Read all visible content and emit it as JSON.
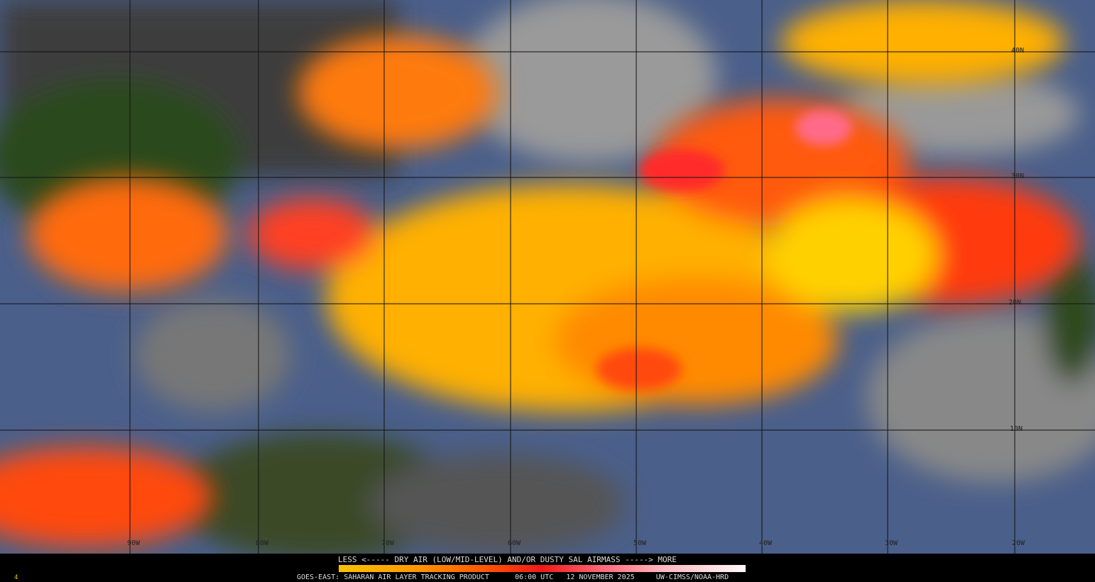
{
  "legend": {
    "title": "LESS <----- DRY AIR (LOW/MID-LEVEL) AND/OR DUSTY SAL AIRMASS -----> MORE",
    "colors": [
      "#f8c200",
      "#ff9a00",
      "#ff5a00",
      "#f01818",
      "#ff6a7a",
      "#ffb8c0",
      "#fff8f8"
    ]
  },
  "footer": {
    "product": "GOES-EAST: SAHARAN AIR LAYER TRACKING PRODUCT",
    "time": "06:00 UTC",
    "date": "12 NOVEMBER 2025",
    "credit": "UW-CIMSS/NOAA-HRD",
    "corner_mark": "4"
  },
  "grid": {
    "latitudes": [
      "40N",
      "30N",
      "20N",
      "10N"
    ],
    "longitudes": [
      "90W",
      "80W",
      "70W",
      "60W",
      "50W",
      "40W",
      "30W",
      "20W"
    ]
  }
}
